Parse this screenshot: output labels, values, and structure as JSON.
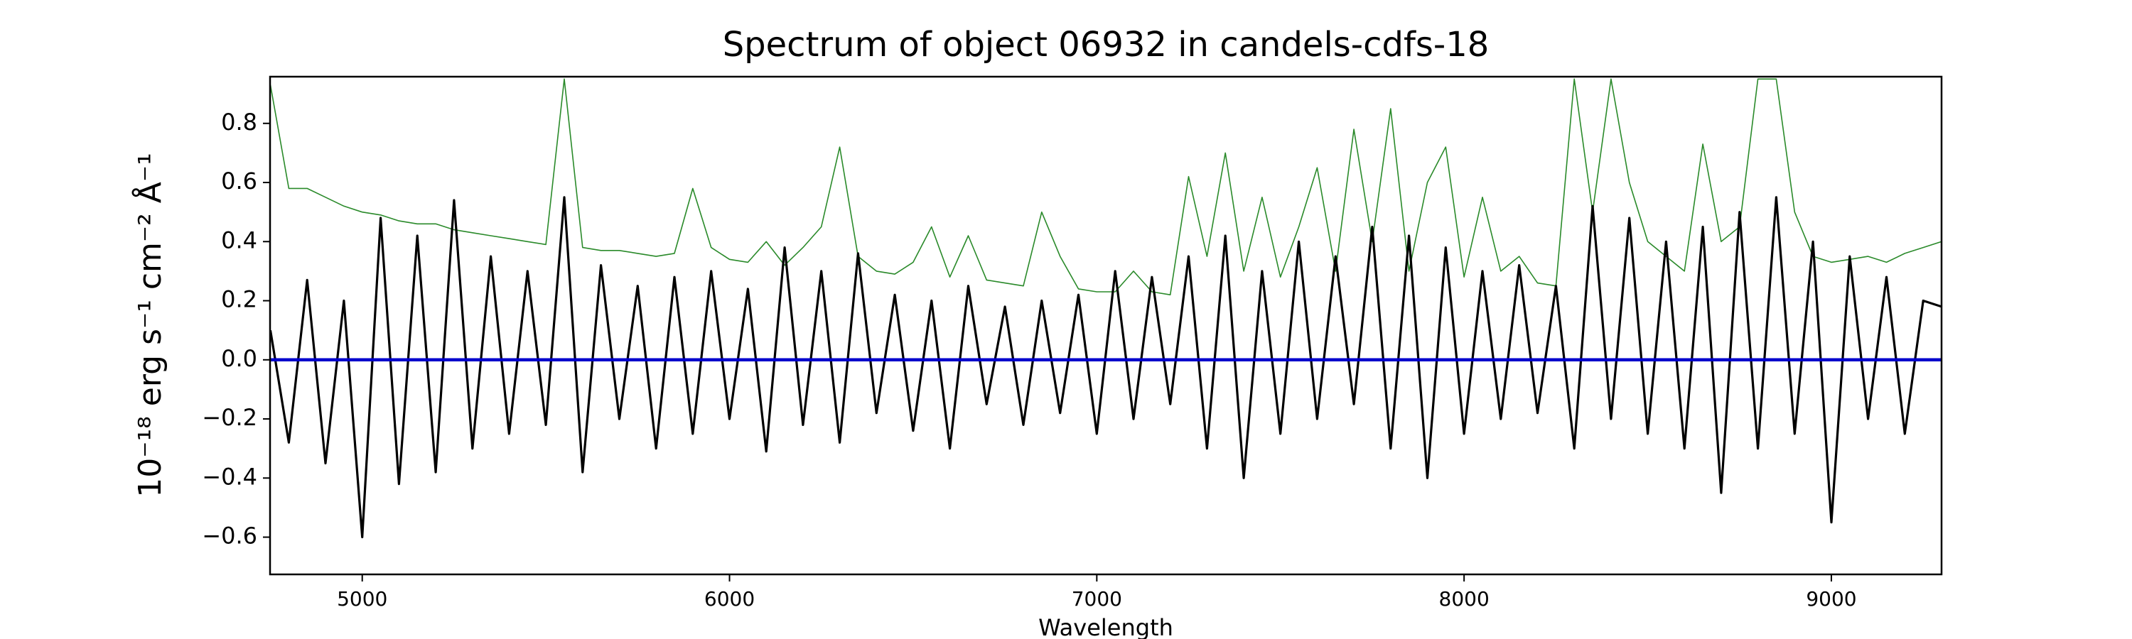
{
  "chart_data": {
    "type": "line",
    "title": "Spectrum of object 06932 in candels-cdfs-18",
    "xlabel": "Wavelength",
    "ylabel": "10⁻¹⁸ erg s⁻¹ cm⁻² Å⁻¹",
    "x": [
      4750,
      4800,
      4850,
      4900,
      4950,
      5000,
      5050,
      5100,
      5150,
      5200,
      5250,
      5300,
      5350,
      5400,
      5450,
      5500,
      5550,
      5600,
      5650,
      5700,
      5750,
      5800,
      5850,
      5900,
      5950,
      6000,
      6050,
      6100,
      6150,
      6200,
      6250,
      6300,
      6350,
      6400,
      6450,
      6500,
      6550,
      6600,
      6650,
      6700,
      6750,
      6800,
      6850,
      6900,
      6950,
      7000,
      7050,
      7100,
      7150,
      7200,
      7250,
      7300,
      7350,
      7400,
      7450,
      7500,
      7550,
      7600,
      7650,
      7700,
      7750,
      7800,
      7850,
      7900,
      7950,
      8000,
      8050,
      8100,
      8150,
      8200,
      8250,
      8300,
      8350,
      8400,
      8450,
      8500,
      8550,
      8600,
      8650,
      8700,
      8750,
      8800,
      8850,
      8900,
      8950,
      9000,
      9050,
      9100,
      9150,
      9200,
      9250,
      9300
    ],
    "series": [
      {
        "color": "#2a8a2a",
        "values": [
          0.93,
          0.58,
          0.58,
          0.55,
          0.52,
          0.5,
          0.49,
          0.47,
          0.46,
          0.46,
          0.44,
          0.43,
          0.42,
          0.41,
          0.4,
          0.39,
          0.95,
          0.38,
          0.37,
          0.37,
          0.36,
          0.35,
          0.36,
          0.58,
          0.38,
          0.34,
          0.33,
          0.4,
          0.32,
          0.38,
          0.45,
          0.72,
          0.35,
          0.3,
          0.29,
          0.33,
          0.45,
          0.28,
          0.42,
          0.27,
          0.26,
          0.25,
          0.5,
          0.35,
          0.24,
          0.23,
          0.23,
          0.3,
          0.23,
          0.22,
          0.62,
          0.35,
          0.7,
          0.3,
          0.55,
          0.28,
          0.45,
          0.65,
          0.3,
          0.78,
          0.4,
          0.85,
          0.3,
          0.6,
          0.72,
          0.28,
          0.55,
          0.3,
          0.35,
          0.26,
          0.25,
          0.95,
          0.5,
          0.95,
          0.6,
          0.4,
          0.35,
          0.3,
          0.73,
          0.4,
          0.45,
          0.95,
          0.95,
          0.5,
          0.35,
          0.33,
          0.34,
          0.35,
          0.33,
          0.36,
          0.38,
          0.4
        ]
      },
      {
        "color": "#000000",
        "values": [
          0.1,
          -0.28,
          0.27,
          -0.35,
          0.2,
          -0.6,
          0.48,
          -0.42,
          0.42,
          -0.38,
          0.54,
          -0.3,
          0.35,
          -0.25,
          0.3,
          -0.22,
          0.55,
          -0.38,
          0.32,
          -0.2,
          0.25,
          -0.3,
          0.28,
          -0.25,
          0.3,
          -0.2,
          0.24,
          -0.31,
          0.38,
          -0.22,
          0.3,
          -0.28,
          0.36,
          -0.18,
          0.22,
          -0.24,
          0.2,
          -0.3,
          0.25,
          -0.15,
          0.18,
          -0.22,
          0.2,
          -0.18,
          0.22,
          -0.25,
          0.3,
          -0.2,
          0.28,
          -0.15,
          0.35,
          -0.3,
          0.42,
          -0.4,
          0.3,
          -0.25,
          0.4,
          -0.2,
          0.35,
          -0.15,
          0.45,
          -0.3,
          0.42,
          -0.4,
          0.38,
          -0.25,
          0.3,
          -0.2,
          0.32,
          -0.18,
          0.25,
          -0.3,
          0.52,
          -0.2,
          0.48,
          -0.25,
          0.4,
          -0.3,
          0.45,
          -0.45,
          0.5,
          -0.3,
          0.55,
          -0.25,
          0.4,
          -0.55,
          0.35,
          -0.2,
          0.28,
          -0.25,
          0.2,
          0.18
        ]
      },
      {
        "color": "#0000cc",
        "values": [
          0,
          0,
          0,
          0,
          0,
          0,
          0,
          0,
          0,
          0,
          0,
          0,
          0,
          0,
          0,
          0,
          0,
          0,
          0,
          0,
          0,
          0,
          0,
          0,
          0,
          0,
          0,
          0,
          0,
          0,
          0,
          0,
          0,
          0,
          0,
          0,
          0,
          0,
          0,
          0,
          0,
          0,
          0,
          0,
          0,
          0,
          0,
          0,
          0,
          0,
          0,
          0,
          0,
          0,
          0,
          0,
          0,
          0,
          0,
          0,
          0,
          0,
          0,
          0,
          0,
          0,
          0,
          0,
          0,
          0,
          0,
          0,
          0,
          0,
          0,
          0,
          0,
          0,
          0,
          0,
          0,
          0,
          0,
          0,
          0,
          0,
          0,
          0,
          0,
          0,
          0,
          0
        ]
      }
    ],
    "xlim": [
      4749,
      9300
    ],
    "xticks": [
      5000,
      6000,
      7000,
      8000,
      9000
    ],
    "ylim": [
      -0.726,
      0.958
    ],
    "yticks": [
      {
        "value": -0.6,
        "label": "−0.6"
      },
      {
        "value": -0.4,
        "label": "−0.4"
      },
      {
        "value": -0.2,
        "label": "−0.2"
      },
      {
        "value": 0.0,
        "label": "0.0"
      },
      0.2,
      0.4,
      0.6,
      0.8
    ]
  }
}
